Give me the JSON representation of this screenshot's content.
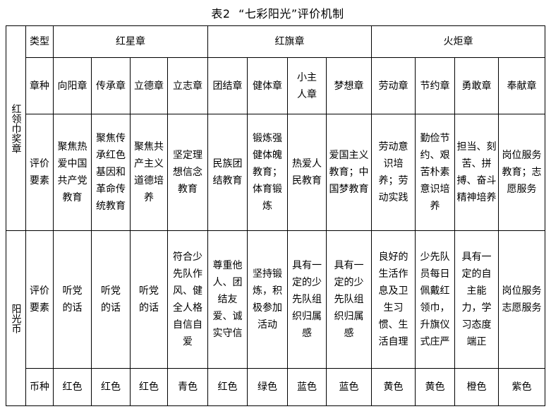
{
  "title": {
    "table_no": "表2",
    "name": "“七彩阳光”评价机制"
  },
  "section1": {
    "label": "红领巾奖章",
    "type_label": "类型",
    "types": [
      "红星章",
      "红旗章",
      "火炬章"
    ],
    "kind_label": "章种",
    "kinds": [
      "向阳章",
      "传承章",
      "立德章",
      "立志章",
      "团结章",
      "健体章",
      "小主人章",
      "梦想章",
      "劳动章",
      "节约章",
      "勇敢章",
      "奉献章"
    ],
    "eval_label": "评价要素",
    "evals": [
      "聚焦热爱中国共产党教育",
      "聚焦传承红色基因和革命传统教育",
      "聚焦共产主义道德培养",
      "坚定理想信念教育",
      "民族团结教育",
      "锻炼强健体魄教育；体育锻炼",
      "热爱人民教育",
      "爱国主义教育；中国梦教育",
      "劳动意识培养；劳动实践",
      "勤俭节约、艰苦朴素意识培养",
      "担当、刻苦、拼搏、奋斗精神培养",
      "岗位服务教育；志愿服务"
    ]
  },
  "section2": {
    "label": "阳光币",
    "eval_label": "评价要素",
    "evals": [
      "听党的话",
      "听党的话",
      "听党的话",
      "符合少先队作风、健全人格自信自爱",
      "尊重他人、团结友爱、诚实守信",
      "坚持锻炼，积极参加活动",
      "具有一定的少先队组织归属感",
      "具有一定的少先队组织归属感",
      "良好的生活作息及卫生习惯、生活自理",
      "少先队员每日佩戴红领巾，升旗仪式庄严",
      "具有一定的自主能力，学习态度端正",
      "岗位服务志愿服务"
    ],
    "coin_label": "币种",
    "coins": [
      "红色",
      "红色",
      "红色",
      "青色",
      "红色",
      "绿色",
      "蓝色",
      "蓝色",
      "黄色",
      "黄色",
      "橙色",
      "紫色"
    ]
  }
}
